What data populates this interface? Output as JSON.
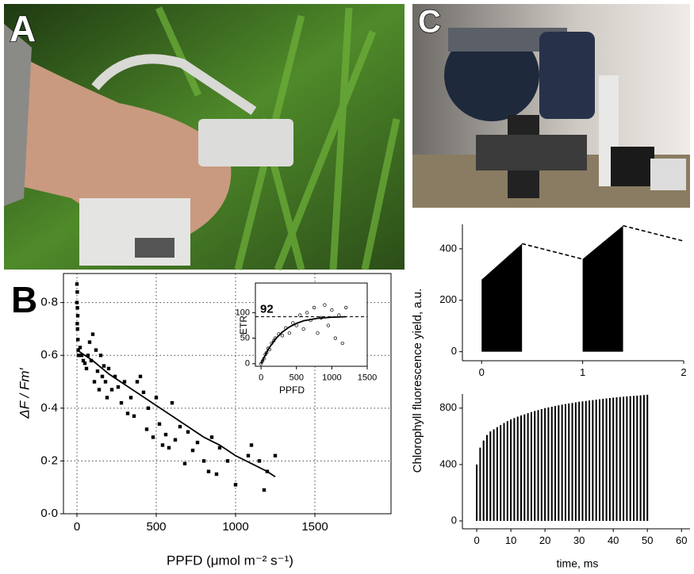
{
  "panels": {
    "a": "A",
    "b": "B",
    "c": "C"
  },
  "shared_ylabel": "Chlorophyll fluorescence yield, a.u.",
  "chart_data": [
    {
      "type": "scatter",
      "xlabel": "PPFD (μmol m⁻² s⁻¹)",
      "ylabel": "ΔF / Fm′",
      "xlim": [
        -85,
        1980
      ],
      "ylim": [
        0,
        0.91
      ],
      "xticks": [
        0,
        500,
        1000,
        1500
      ],
      "yticks": [
        {
          "value": 0,
          "label": "0·0"
        },
        {
          "value": 0.2,
          "label": "0·2"
        },
        {
          "value": 0.4,
          "label": "0·4"
        },
        {
          "value": 0.6,
          "label": "0·6"
        },
        {
          "value": 0.8,
          "label": "0·8"
        }
      ],
      "grid": true,
      "color": "#000000",
      "series": [
        {
          "style": "points-filled",
          "x": [
            0,
            2,
            0,
            3,
            5,
            2,
            4,
            6,
            8,
            10,
            20,
            30,
            40,
            50,
            60,
            70,
            80,
            90,
            100,
            110,
            120,
            130,
            140,
            150,
            160,
            170,
            180,
            190,
            200,
            220,
            240,
            260,
            280,
            300,
            320,
            340,
            360,
            380,
            400,
            420,
            440,
            450,
            480,
            500,
            520,
            540,
            560,
            580,
            600,
            620,
            650,
            680,
            700,
            730,
            760,
            800,
            830,
            850,
            880,
            900,
            950,
            1000,
            1080,
            1100,
            1150,
            1180,
            1200,
            1250
          ],
          "values": [
            0.87,
            0.84,
            0.8,
            0.78,
            0.75,
            0.72,
            0.7,
            0.66,
            0.62,
            0.6,
            0.63,
            0.6,
            0.58,
            0.57,
            0.55,
            0.6,
            0.65,
            0.58,
            0.68,
            0.5,
            0.62,
            0.54,
            0.47,
            0.6,
            0.52,
            0.56,
            0.5,
            0.44,
            0.55,
            0.47,
            0.52,
            0.48,
            0.42,
            0.5,
            0.38,
            0.44,
            0.37,
            0.5,
            0.52,
            0.46,
            0.32,
            0.4,
            0.29,
            0.44,
            0.34,
            0.26,
            0.3,
            0.25,
            0.42,
            0.28,
            0.33,
            0.19,
            0.31,
            0.24,
            0.27,
            0.2,
            0.16,
            0.29,
            0.15,
            0.25,
            0.2,
            0.11,
            0.22,
            0.26,
            0.2,
            0.09,
            0.16,
            0.22
          ]
        },
        {
          "style": "line",
          "x": [
            0,
            100,
            200,
            300,
            400,
            500,
            600,
            700,
            800,
            900,
            1000,
            1100,
            1200,
            1250
          ],
          "values": [
            0.62,
            0.58,
            0.53,
            0.49,
            0.45,
            0.41,
            0.37,
            0.33,
            0.29,
            0.26,
            0.22,
            0.19,
            0.16,
            0.14
          ]
        }
      ]
    },
    {
      "type": "scatter",
      "xlabel": "PPFD",
      "ylabel": "ETR",
      "xlim": [
        -80,
        1500
      ],
      "ylim": [
        -5,
        158
      ],
      "xticks": [
        0,
        500,
        1000,
        1500
      ],
      "yticks": [
        0,
        50,
        100
      ],
      "grid": false,
      "color": "#000000",
      "reference_line": 92,
      "series": [
        {
          "style": "points-hollow",
          "x": [
            0,
            20,
            40,
            60,
            80,
            100,
            120,
            150,
            180,
            200,
            250,
            300,
            350,
            400,
            450,
            500,
            550,
            600,
            650,
            700,
            750,
            800,
            850,
            900,
            950,
            1000,
            1050,
            1100,
            1150,
            1200
          ],
          "values": [
            0,
            5,
            10,
            18,
            22,
            30,
            28,
            40,
            45,
            50,
            58,
            55,
            70,
            60,
            80,
            75,
            95,
            68,
            100,
            85,
            110,
            60,
            90,
            115,
            75,
            105,
            50,
            95,
            40,
            110
          ]
        },
        {
          "style": "line",
          "x": [
            0,
            100,
            200,
            300,
            400,
            500,
            600,
            800,
            1000,
            1200
          ],
          "values": [
            0,
            28,
            48,
            62,
            72,
            79,
            84,
            89,
            91,
            92
          ]
        }
      ]
    },
    {
      "type": "area",
      "xlim": [
        -0.19,
        2.0
      ],
      "ylim": [
        -35,
        495
      ],
      "xticks": [
        0,
        1,
        2
      ],
      "yticks": [
        0,
        200,
        400
      ],
      "color": "#000000",
      "series": [
        {
          "style": "fill",
          "x": [
            0,
            0.4
          ],
          "values": [
            280,
            420
          ]
        },
        {
          "style": "dashed",
          "x": [
            0.4,
            1.0
          ],
          "values": [
            420,
            360
          ]
        },
        {
          "style": "fill",
          "x": [
            1.0,
            1.4
          ],
          "values": [
            360,
            490
          ]
        },
        {
          "style": "dashed",
          "x": [
            1.4,
            2.0
          ],
          "values": [
            490,
            430
          ]
        }
      ]
    },
    {
      "type": "bar",
      "xlabel": "time, ms",
      "xlim": [
        -4.2,
        62.5
      ],
      "ylim": [
        -56,
        900
      ],
      "xticks": [
        0,
        10,
        20,
        30,
        40,
        50,
        60
      ],
      "yticks": [
        0,
        400,
        800
      ],
      "color": "#000000",
      "x": [
        0,
        1,
        2,
        3,
        4,
        5,
        6,
        7,
        8,
        9,
        10,
        11,
        12,
        13,
        14,
        15,
        16,
        17,
        18,
        19,
        20,
        21,
        22,
        23,
        24,
        25,
        26,
        27,
        28,
        29,
        30,
        31,
        32,
        33,
        34,
        35,
        36,
        37,
        38,
        39,
        40,
        41,
        42,
        43,
        44,
        45,
        46,
        47,
        48,
        49,
        50
      ],
      "values": [
        400,
        520,
        570,
        610,
        635,
        650,
        665,
        680,
        695,
        708,
        720,
        730,
        740,
        748,
        756,
        764,
        772,
        780,
        786,
        793,
        800,
        805,
        810,
        815,
        820,
        825,
        829,
        833,
        837,
        841,
        845,
        848,
        851,
        854,
        857,
        860,
        863,
        866,
        869,
        872,
        875,
        877,
        879,
        881,
        883,
        885,
        887,
        889,
        891,
        893,
        895
      ]
    }
  ]
}
